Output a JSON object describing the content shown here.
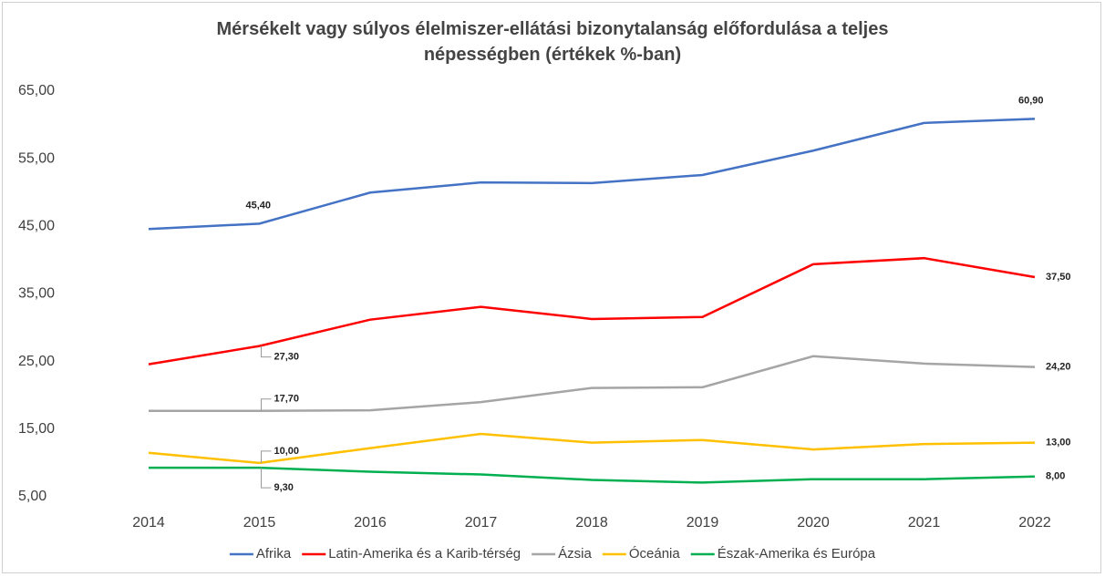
{
  "chart_data": {
    "type": "line",
    "title": "Mérsékelt vagy súlyos élelmiszer-ellátási bizonytalanság előfordulása a teljes\nnépességben (értékek %-ban)",
    "categories": [
      "2014",
      "2015",
      "2016",
      "2017",
      "2018",
      "2019",
      "2020",
      "2021",
      "2022"
    ],
    "ylim": [
      5,
      65
    ],
    "yticks": [
      {
        "value": 5,
        "label": "5,00"
      },
      {
        "value": 15,
        "label": "15,00"
      },
      {
        "value": 25,
        "label": "25,00"
      },
      {
        "value": 35,
        "label": "35,00"
      },
      {
        "value": 45,
        "label": "45,00"
      },
      {
        "value": 55,
        "label": "55,00"
      },
      {
        "value": 65,
        "label": "65,00"
      }
    ],
    "grid": false,
    "legend": "bottom",
    "series": [
      {
        "name": "Afrika",
        "color": "#4472c4",
        "values": [
          44.6,
          45.4,
          50.0,
          51.5,
          51.4,
          52.6,
          56.2,
          60.3,
          60.9
        ],
        "value_labels": [
          null,
          "45,40",
          null,
          null,
          null,
          null,
          null,
          null,
          "60,90"
        ]
      },
      {
        "name": "Latin-Amerika és a Karib-térség",
        "color": "#ff0000",
        "values": [
          24.6,
          27.3,
          31.2,
          33.1,
          31.3,
          31.6,
          39.4,
          40.3,
          37.5
        ],
        "value_labels": [
          null,
          "27,30",
          null,
          null,
          null,
          null,
          null,
          null,
          "37,50"
        ]
      },
      {
        "name": "Ázsia",
        "color": "#a5a5a5",
        "values": [
          17.7,
          17.7,
          17.8,
          19.0,
          21.1,
          21.2,
          25.8,
          24.7,
          24.2
        ],
        "value_labels": [
          null,
          "17,70",
          null,
          null,
          null,
          null,
          null,
          null,
          "24,20"
        ]
      },
      {
        "name": "Óceánia",
        "color": "#ffc000",
        "values": [
          11.5,
          10.0,
          12.2,
          14.3,
          13.0,
          13.4,
          12.0,
          12.8,
          13.0
        ],
        "value_labels": [
          null,
          "10,00",
          null,
          null,
          null,
          null,
          null,
          null,
          "13,00"
        ]
      },
      {
        "name": "Észak-Amerika és Európa",
        "color": "#00b050",
        "values": [
          9.3,
          9.3,
          8.7,
          8.3,
          7.5,
          7.1,
          7.6,
          7.6,
          8.0
        ],
        "value_labels": [
          null,
          "9,30",
          null,
          null,
          null,
          null,
          null,
          null,
          "8,00"
        ]
      }
    ]
  }
}
